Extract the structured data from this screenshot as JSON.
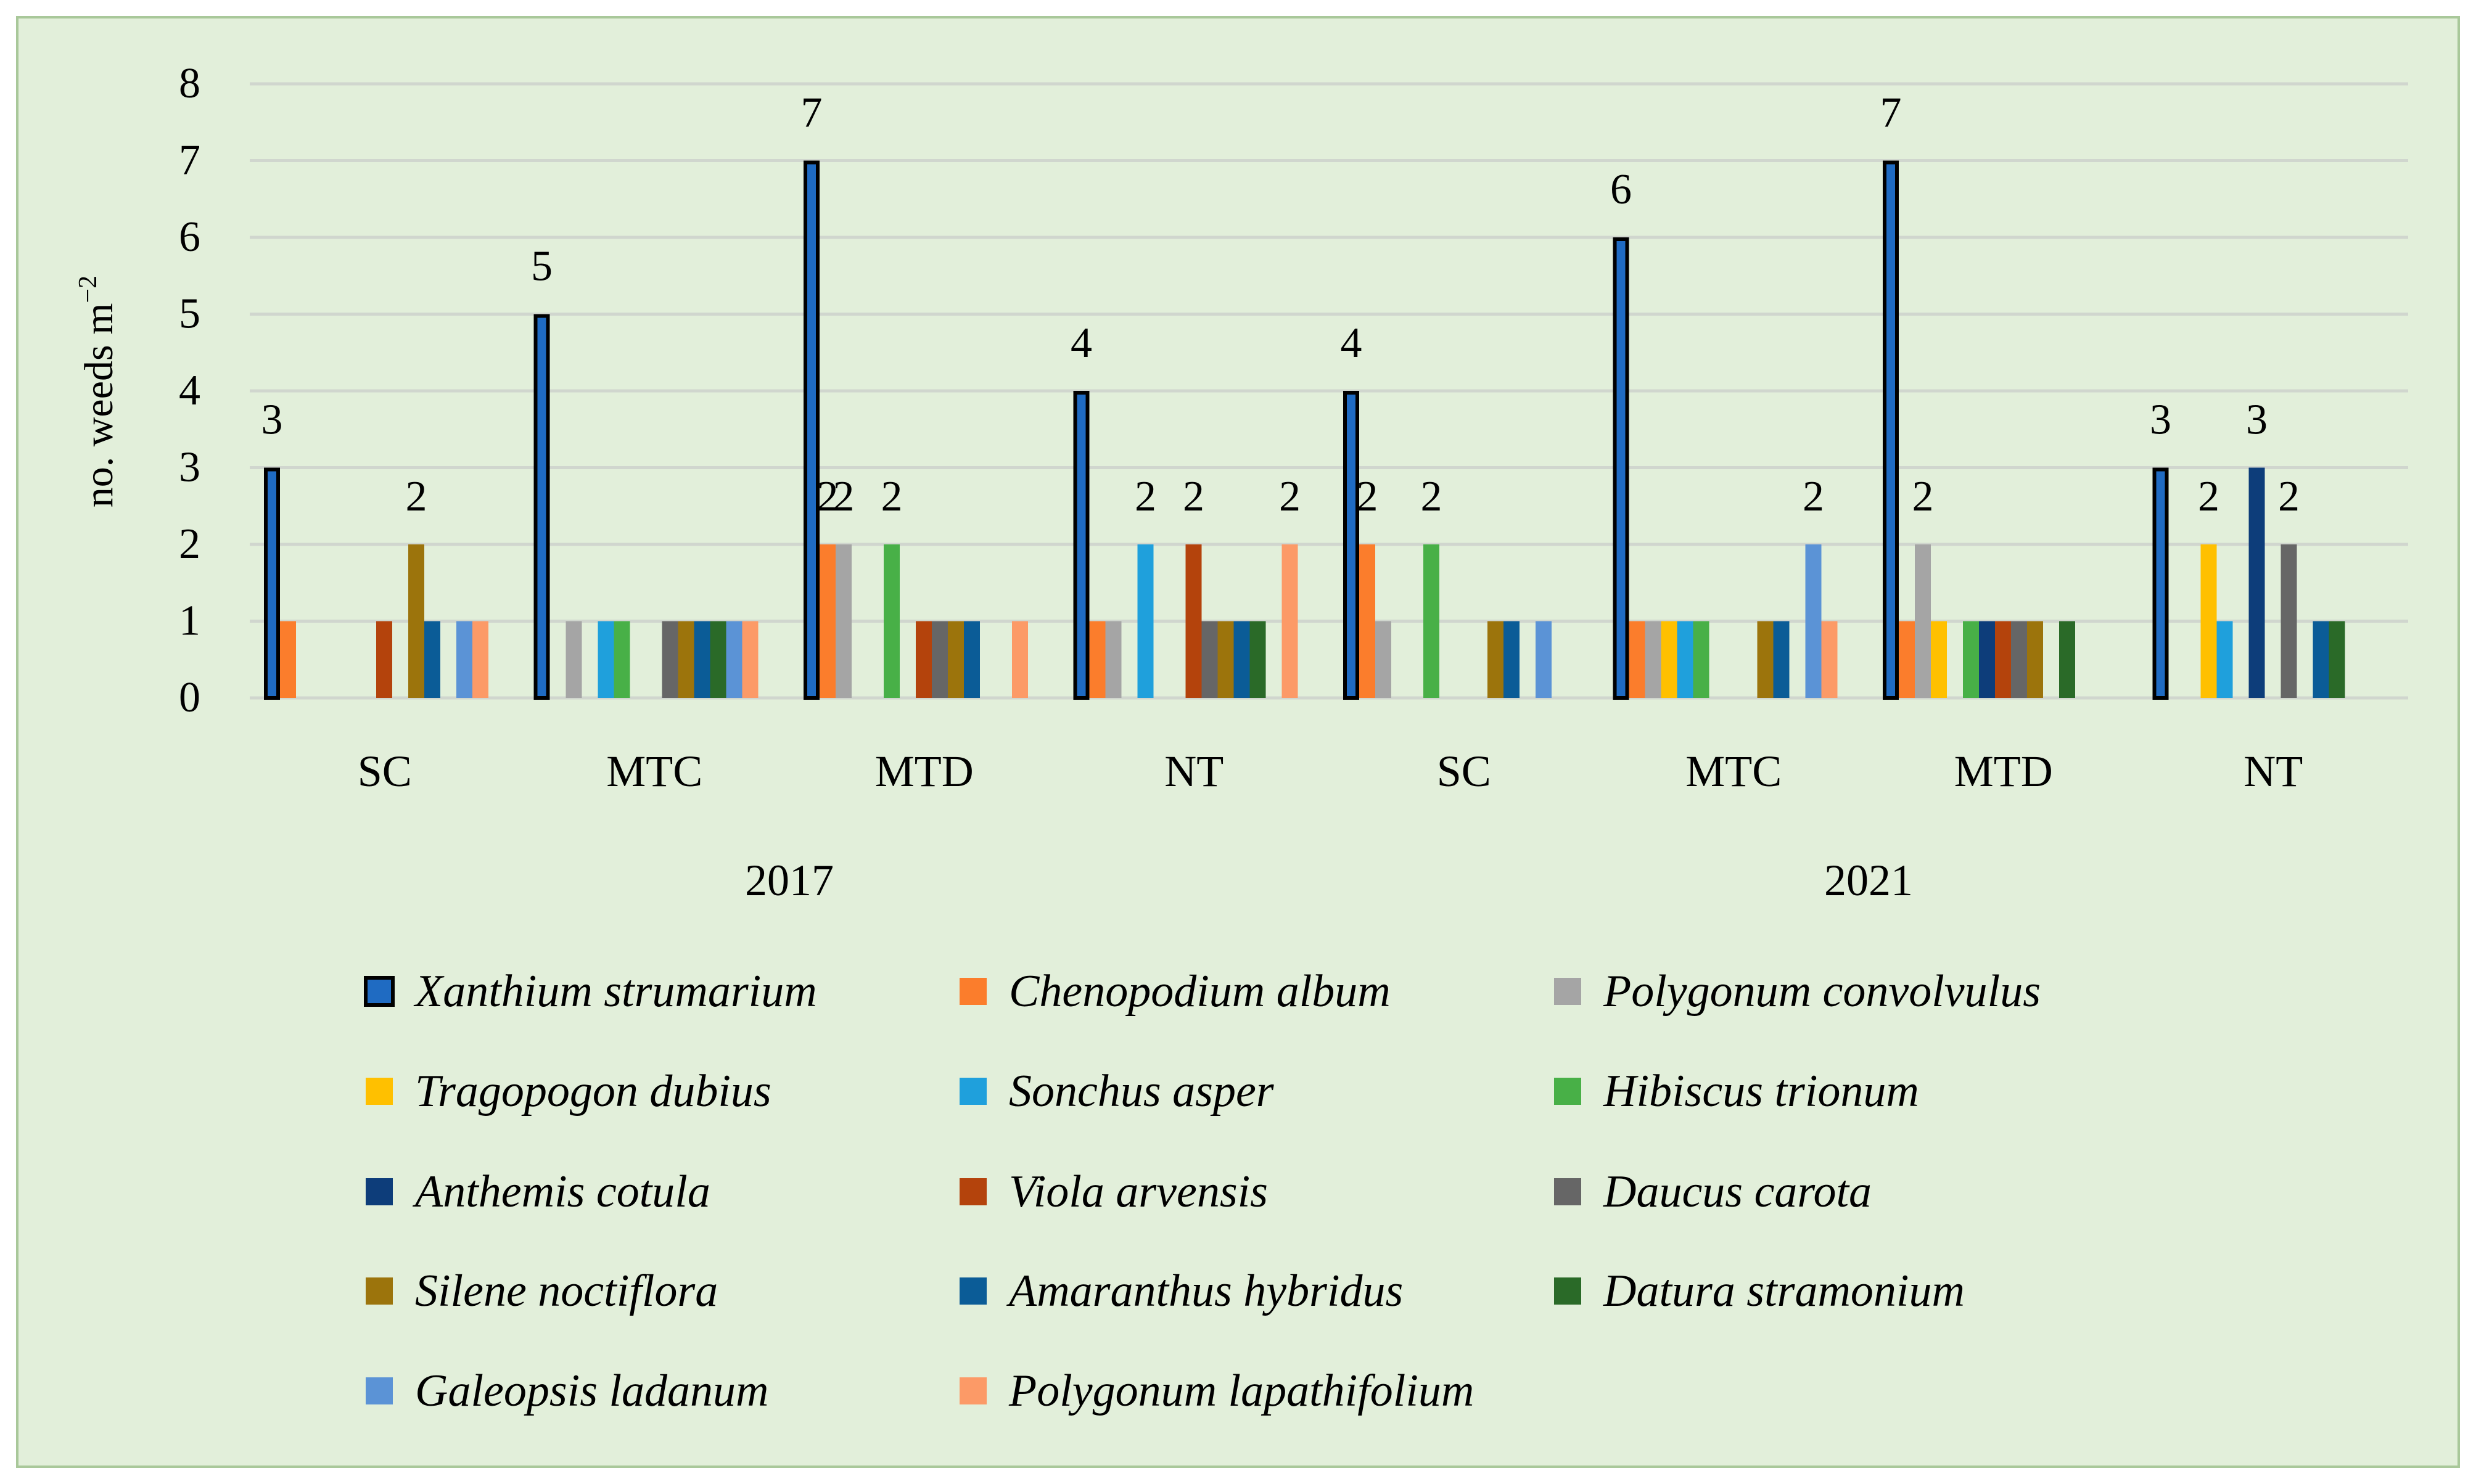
{
  "chart_data": {
    "type": "bar",
    "title": "",
    "xlabel": "",
    "ylabel": "no. weeds m",
    "ylabel_superscript": "−2",
    "ylim": [
      0,
      8
    ],
    "yticks": [
      0,
      1,
      2,
      3,
      4,
      5,
      6,
      7,
      8
    ],
    "grid": true,
    "legend_position": "bottom",
    "groups": [
      {
        "label": "2017",
        "categories": [
          "SC",
          "MTC",
          "MTD",
          "NT"
        ]
      },
      {
        "label": "2021",
        "categories": [
          "SC",
          "MTC",
          "MTD",
          "NT"
        ]
      }
    ],
    "categories": [
      "SC",
      "MTC",
      "MTD",
      "NT",
      "SC",
      "MTC",
      "MTD",
      "NT"
    ],
    "series": [
      {
        "name": "Xanthium strumarium",
        "color": "#1F6BC2",
        "outlined": true,
        "values": [
          3,
          5,
          7,
          4,
          4,
          6,
          7,
          3
        ],
        "labels": [
          "3",
          "5",
          "7",
          "4",
          "4",
          "6",
          "7",
          "3"
        ]
      },
      {
        "name": "Chenopodium album",
        "color": "#FB7D2C",
        "values": [
          1,
          0,
          2,
          1,
          2,
          1,
          1,
          0
        ],
        "labels": [
          null,
          null,
          "2",
          null,
          "2",
          null,
          null,
          null
        ]
      },
      {
        "name": "Polygonum convolvulus",
        "color": "#A5A5A5",
        "values": [
          0,
          1,
          2,
          1,
          1,
          1,
          2,
          0
        ],
        "labels": [
          null,
          null,
          "2",
          null,
          null,
          null,
          "2",
          null
        ]
      },
      {
        "name": "Tragopogon dubius",
        "color": "#FFC000",
        "values": [
          0,
          0,
          0,
          0,
          0,
          1,
          1,
          2
        ],
        "labels": [
          null,
          null,
          null,
          null,
          null,
          null,
          null,
          "2"
        ]
      },
      {
        "name": "Sonchus asper",
        "color": "#1FA0DC",
        "values": [
          0,
          1,
          0,
          2,
          0,
          1,
          0,
          1
        ],
        "labels": [
          null,
          null,
          null,
          "2",
          null,
          null,
          null,
          null
        ]
      },
      {
        "name": "Hibiscus trionum",
        "color": "#48B047",
        "values": [
          0,
          1,
          2,
          0,
          2,
          1,
          1,
          0
        ],
        "labels": [
          null,
          null,
          "2",
          null,
          "2",
          null,
          null,
          null
        ]
      },
      {
        "name": "Anthemis cotula",
        "color": "#0D3D7A",
        "values": [
          0,
          0,
          0,
          0,
          0,
          0,
          1,
          3
        ],
        "labels": [
          null,
          null,
          null,
          null,
          null,
          null,
          null,
          "3"
        ]
      },
      {
        "name": "Viola arvensis",
        "color": "#B4430C",
        "values": [
          1,
          0,
          1,
          2,
          0,
          0,
          1,
          0
        ],
        "labels": [
          null,
          null,
          null,
          "2",
          null,
          null,
          null,
          null
        ]
      },
      {
        "name": "Daucus carota",
        "color": "#666666",
        "values": [
          0,
          1,
          1,
          1,
          0,
          0,
          1,
          2
        ],
        "labels": [
          null,
          null,
          null,
          null,
          null,
          null,
          null,
          "2"
        ]
      },
      {
        "name": "Silene noctiflora",
        "color": "#9C740C",
        "values": [
          2,
          1,
          1,
          1,
          1,
          1,
          1,
          0
        ],
        "labels": [
          "2",
          null,
          null,
          null,
          null,
          null,
          null,
          null
        ]
      },
      {
        "name": "Amaranthus hybridus",
        "color": "#0B5C97",
        "values": [
          1,
          1,
          1,
          1,
          1,
          1,
          0,
          1
        ],
        "labels": [
          null,
          null,
          null,
          null,
          null,
          null,
          null,
          null
        ]
      },
      {
        "name": "Datura stramonium",
        "color": "#2A6A28",
        "values": [
          0,
          1,
          0,
          1,
          0,
          0,
          1,
          1
        ],
        "labels": [
          null,
          null,
          null,
          null,
          null,
          null,
          null,
          null
        ]
      },
      {
        "name": "Galeopsis ladanum",
        "color": "#5B93D6",
        "values": [
          1,
          1,
          0,
          0,
          1,
          2,
          0,
          0
        ],
        "labels": [
          null,
          null,
          null,
          null,
          null,
          "2",
          null,
          null
        ]
      },
      {
        "name": "Polygonum lapathifolium",
        "color": "#FC9A67",
        "values": [
          1,
          1,
          1,
          2,
          0,
          1,
          0,
          0
        ],
        "labels": [
          null,
          null,
          null,
          "2",
          null,
          null,
          null,
          null
        ]
      }
    ]
  },
  "colors": {
    "background": "#E2EFDA",
    "gridline": "#D0D6CE",
    "border": "#A9C89A",
    "outline": "#000000",
    "text": "#000000"
  }
}
